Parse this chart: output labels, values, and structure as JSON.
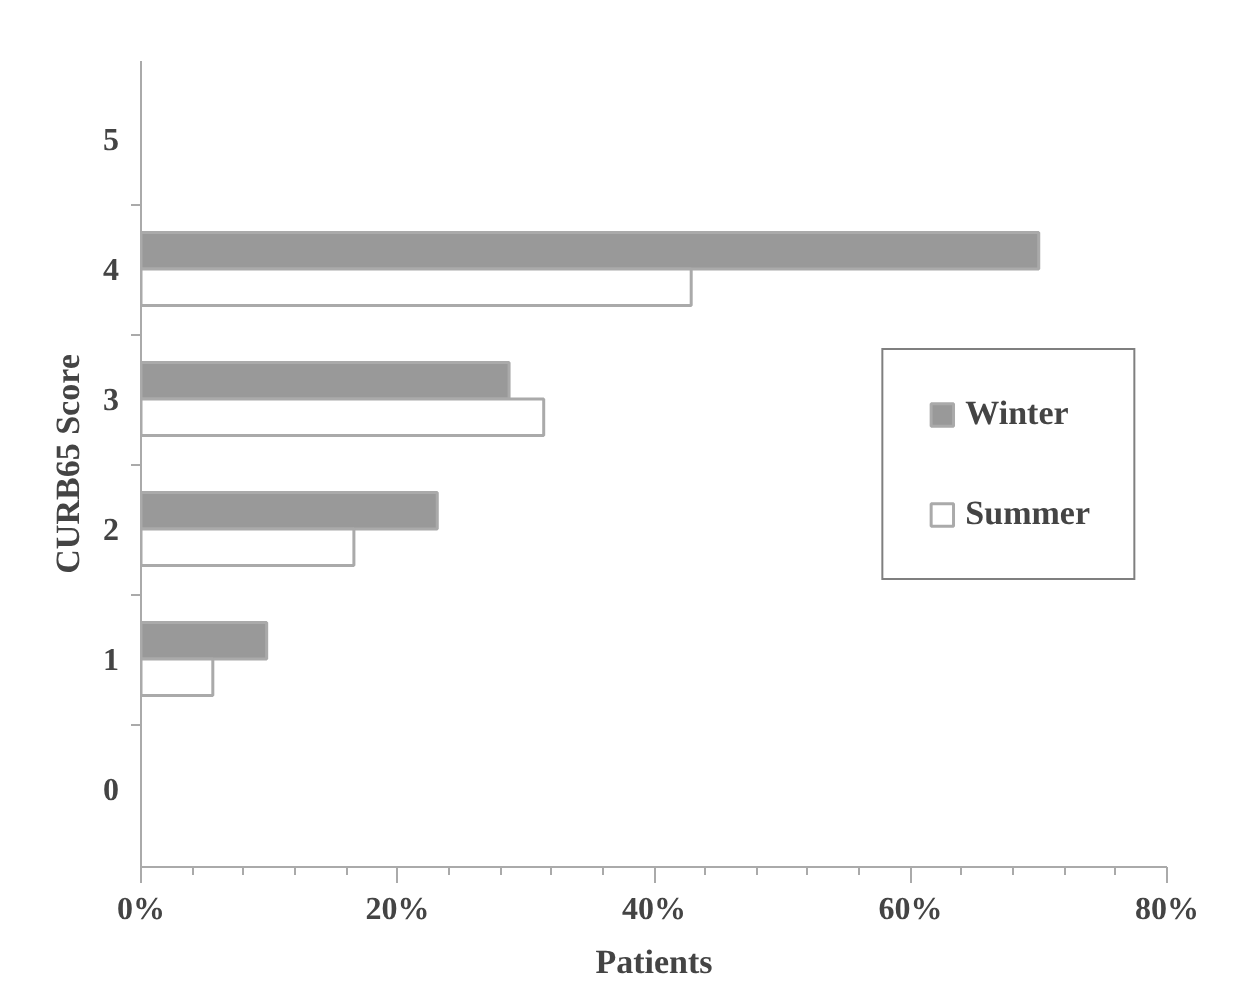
{
  "chart_data": {
    "type": "bar",
    "orientation": "horizontal",
    "xlabel": "Patients",
    "ylabel": "CURB65 Score",
    "categories": [
      "5",
      "4",
      "3",
      "2",
      "1",
      "0"
    ],
    "series": [
      {
        "name": "Winter",
        "color": "#999999",
        "values": [
          null,
          70,
          28.7,
          23.1,
          9.8,
          null
        ]
      },
      {
        "name": "Summer",
        "color": "#ffffff",
        "values": [
          null,
          42.9,
          31.4,
          16.6,
          5.6,
          null
        ]
      }
    ],
    "xlim": [
      0,
      80
    ],
    "xticks": [
      {
        "value": 0,
        "label": "0%"
      },
      {
        "value": 20,
        "label": "20%"
      },
      {
        "value": 40,
        "label": "40%"
      },
      {
        "value": 60,
        "label": "60%"
      },
      {
        "value": 80,
        "label": "80%"
      }
    ],
    "grid": false,
    "legend": "right"
  }
}
